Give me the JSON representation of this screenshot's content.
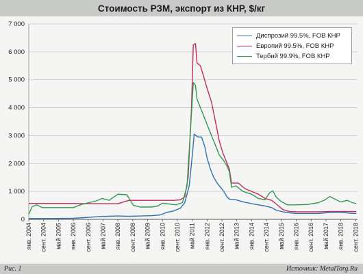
{
  "title": "Стоимость РЗМ, экспорт из КНР, $/кг",
  "figure_label": "Рис. 1",
  "source": "Источник: MetalTorg.Ru",
  "chart_data": {
    "type": "line",
    "title": "Стоимость РЗМ, экспорт из КНР, $/кг",
    "ylim": [
      0,
      7000
    ],
    "yticks": [
      0,
      1000,
      2000,
      3000,
      4000,
      5000,
      6000,
      7000
    ],
    "ytick_labels": [
      "0",
      "1 000",
      "2 000",
      "3 000",
      "4 000",
      "5 000",
      "6 000",
      "7 000"
    ],
    "grid": true,
    "legend_position": "top-right",
    "xlim": [
      2004.0,
      2018.75
    ],
    "xticks": [
      2004.0,
      2004.667,
      2005.333,
      2006.0,
      2006.667,
      2007.333,
      2008.0,
      2008.667,
      2009.333,
      2010.0,
      2010.667,
      2011.333,
      2012.0,
      2012.667,
      2013.333,
      2014.0,
      2014.667,
      2015.333,
      2016.0,
      2016.667,
      2017.333,
      2018.0,
      2018.667
    ],
    "xtick_labels": [
      "янв. 2004",
      "сент. 2004",
      "май 2005",
      "янв. 2006",
      "сент. 2006",
      "май 2007",
      "янв. 2008",
      "сент. 2008",
      "май 2009",
      "янв. 2010",
      "сент. 2010",
      "май 2011",
      "янв. 2012",
      "сент. 2012",
      "май 2013",
      "янв. 2014",
      "сент. 2014",
      "май 2015",
      "янв. 2016",
      "сент. 2016",
      "май 2017",
      "янв. 2018",
      "сент. 2018"
    ],
    "series": [
      {
        "name": "Диспрозий 99.5%, FOB КНР",
        "color": "#2e6fb5",
        "points": [
          [
            2004.0,
            30
          ],
          [
            2005.0,
            30
          ],
          [
            2006.0,
            40
          ],
          [
            2006.5,
            60
          ],
          [
            2007.0,
            90
          ],
          [
            2007.5,
            110
          ],
          [
            2008.0,
            120
          ],
          [
            2008.5,
            110
          ],
          [
            2009.0,
            120
          ],
          [
            2009.5,
            130
          ],
          [
            2009.9,
            160
          ],
          [
            2010.2,
            250
          ],
          [
            2010.5,
            300
          ],
          [
            2010.8,
            400
          ],
          [
            2011.0,
            600
          ],
          [
            2011.2,
            1200
          ],
          [
            2011.35,
            2400
          ],
          [
            2011.42,
            3050
          ],
          [
            2011.5,
            3000
          ],
          [
            2011.6,
            2950
          ],
          [
            2011.75,
            2950
          ],
          [
            2011.9,
            2600
          ],
          [
            2012.0,
            2200
          ],
          [
            2012.15,
            1800
          ],
          [
            2012.3,
            1500
          ],
          [
            2012.45,
            1300
          ],
          [
            2012.6,
            1150
          ],
          [
            2012.75,
            1000
          ],
          [
            2012.9,
            800
          ],
          [
            2013.0,
            720
          ],
          [
            2013.3,
            700
          ],
          [
            2013.6,
            630
          ],
          [
            2014.0,
            560
          ],
          [
            2014.3,
            520
          ],
          [
            2014.6,
            480
          ],
          [
            2014.9,
            420
          ],
          [
            2015.1,
            330
          ],
          [
            2015.4,
            270
          ],
          [
            2015.7,
            230
          ],
          [
            2016.0,
            210
          ],
          [
            2016.5,
            210
          ],
          [
            2017.0,
            210
          ],
          [
            2017.3,
            230
          ],
          [
            2017.6,
            250
          ],
          [
            2018.0,
            250
          ],
          [
            2018.4,
            220
          ],
          [
            2018.7,
            210
          ]
        ]
      },
      {
        "name": "Европий 99.5%, FOB КНР",
        "color": "#c8285a",
        "points": [
          [
            2004.0,
            570
          ],
          [
            2005.0,
            570
          ],
          [
            2006.0,
            570
          ],
          [
            2006.5,
            560
          ],
          [
            2007.0,
            560
          ],
          [
            2008.0,
            560
          ],
          [
            2008.5,
            680
          ],
          [
            2009.0,
            680
          ],
          [
            2009.5,
            680
          ],
          [
            2010.0,
            680
          ],
          [
            2010.5,
            680
          ],
          [
            2010.8,
            700
          ],
          [
            2011.0,
            800
          ],
          [
            2011.15,
            1500
          ],
          [
            2011.3,
            4000
          ],
          [
            2011.38,
            6250
          ],
          [
            2011.48,
            6300
          ],
          [
            2011.55,
            5600
          ],
          [
            2011.7,
            5500
          ],
          [
            2011.85,
            5100
          ],
          [
            2012.0,
            4700
          ],
          [
            2012.2,
            4200
          ],
          [
            2012.4,
            3400
          ],
          [
            2012.55,
            2800
          ],
          [
            2012.7,
            2400
          ],
          [
            2012.85,
            2100
          ],
          [
            2013.0,
            1800
          ],
          [
            2013.1,
            1300
          ],
          [
            2013.4,
            1300
          ],
          [
            2013.7,
            1100
          ],
          [
            2014.0,
            1000
          ],
          [
            2014.3,
            900
          ],
          [
            2014.6,
            750
          ],
          [
            2014.9,
            680
          ],
          [
            2015.1,
            550
          ],
          [
            2015.4,
            350
          ],
          [
            2015.7,
            280
          ],
          [
            2016.0,
            270
          ],
          [
            2016.5,
            270
          ],
          [
            2017.0,
            270
          ],
          [
            2017.5,
            280
          ],
          [
            2018.0,
            280
          ],
          [
            2018.7,
            280
          ]
        ]
      },
      {
        "name": "Тербий 99.9%, FOB КНР",
        "color": "#2e9b4e",
        "points": [
          [
            2004.0,
            180
          ],
          [
            2004.15,
            450
          ],
          [
            2004.35,
            520
          ],
          [
            2004.6,
            420
          ],
          [
            2005.0,
            420
          ],
          [
            2005.5,
            420
          ],
          [
            2006.0,
            420
          ],
          [
            2006.3,
            520
          ],
          [
            2006.7,
            600
          ],
          [
            2007.0,
            650
          ],
          [
            2007.3,
            750
          ],
          [
            2007.6,
            680
          ],
          [
            2008.0,
            900
          ],
          [
            2008.4,
            880
          ],
          [
            2008.7,
            500
          ],
          [
            2009.0,
            440
          ],
          [
            2009.5,
            440
          ],
          [
            2009.8,
            480
          ],
          [
            2010.0,
            580
          ],
          [
            2010.3,
            550
          ],
          [
            2010.6,
            520
          ],
          [
            2010.9,
            600
          ],
          [
            2011.1,
            1200
          ],
          [
            2011.3,
            3800
          ],
          [
            2011.38,
            4900
          ],
          [
            2011.48,
            4800
          ],
          [
            2011.55,
            4300
          ],
          [
            2011.7,
            4000
          ],
          [
            2011.85,
            3700
          ],
          [
            2012.0,
            3400
          ],
          [
            2012.2,
            3000
          ],
          [
            2012.4,
            2600
          ],
          [
            2012.55,
            2300
          ],
          [
            2012.75,
            2100
          ],
          [
            2012.9,
            1900
          ],
          [
            2013.0,
            1700
          ],
          [
            2013.1,
            1150
          ],
          [
            2013.3,
            1200
          ],
          [
            2013.6,
            1000
          ],
          [
            2014.0,
            900
          ],
          [
            2014.3,
            750
          ],
          [
            2014.6,
            700
          ],
          [
            2014.8,
            950
          ],
          [
            2014.95,
            1020
          ],
          [
            2015.1,
            800
          ],
          [
            2015.3,
            650
          ],
          [
            2015.6,
            520
          ],
          [
            2016.0,
            520
          ],
          [
            2016.5,
            530
          ],
          [
            2017.0,
            600
          ],
          [
            2017.3,
            700
          ],
          [
            2017.5,
            820
          ],
          [
            2017.75,
            720
          ],
          [
            2018.0,
            620
          ],
          [
            2018.3,
            680
          ],
          [
            2018.5,
            600
          ],
          [
            2018.7,
            560
          ]
        ]
      }
    ]
  }
}
